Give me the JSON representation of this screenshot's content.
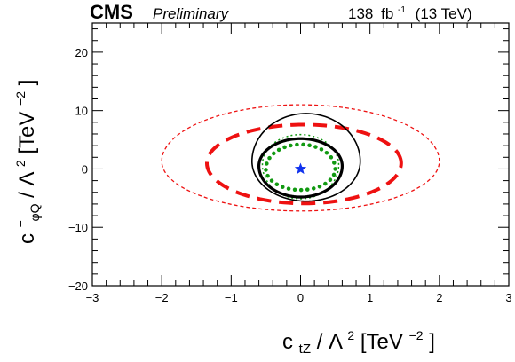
{
  "header": {
    "experiment": "CMS",
    "status": "Preliminary",
    "lumi_value": "138",
    "lumi_unit": "fb",
    "lumi_unit_exp": "-1",
    "energy": "(13 TeV)"
  },
  "axes": {
    "x_title": "c",
    "x_title_sub": "tZ",
    "x_title_tail": " / Λ",
    "x_title_tail_exp": "2",
    "x_unit": " [TeV",
    "x_unit_exp": "−2",
    "x_unit_close": "]",
    "y_title": "c",
    "y_title_sup": "−",
    "y_title_sub": "φQ",
    "y_title_tail": " / Λ",
    "y_title_tail_exp": "2",
    "y_unit": " [TeV",
    "y_unit_exp": "−2",
    "y_unit_close": "]"
  },
  "colors": {
    "red": "#ee1111",
    "green": "#119911",
    "black": "#000000",
    "blue": "#1133ee"
  },
  "chart_data": {
    "type": "scatter",
    "xlim": [
      -3,
      3
    ],
    "ylim": [
      -20,
      25
    ],
    "x_ticks": [
      -3,
      -2,
      -1,
      0,
      1,
      2,
      3
    ],
    "x_tick_labels": [
      "−3",
      "−2",
      "−1",
      "0",
      "1",
      "2",
      "3"
    ],
    "y_ticks": [
      -20,
      -10,
      0,
      10,
      20
    ],
    "y_tick_labels": [
      "−20",
      "−10",
      "0",
      "10",
      "20"
    ],
    "grid": false,
    "best_fit": {
      "x": 0.0,
      "y": 0.0,
      "marker": "star",
      "color": "#1133ee"
    },
    "contours": [
      {
        "style": "red-thin-dashed",
        "color": "#ee1111",
        "cx": 0.0,
        "cy": 1.3,
        "rx": 2.0,
        "ry_up": 9.7,
        "ry_down": 8.5
      },
      {
        "style": "red-thick-dashed",
        "color": "#ee1111",
        "cx": 0.05,
        "cy": 1.0,
        "rx": 1.4,
        "ry_up": 6.6,
        "ry_down": 6.9
      },
      {
        "style": "green-thin-dotted",
        "color": "#119911",
        "cx": 0.0,
        "cy": 0.7,
        "rx": 0.55,
        "ry_up": 5.2,
        "ry_down": 5.8
      },
      {
        "style": "green-thick-dotted",
        "color": "#119911",
        "cx": 0.0,
        "cy": 0.0,
        "rx": 0.5,
        "ry_up": 4.2,
        "ry_down": 3.6
      },
      {
        "style": "black-thin-solid",
        "color": "#000000",
        "cx": 0.08,
        "cy": 1.3,
        "rx": 0.78,
        "ry_up": 8.2,
        "ry_down": 6.8
      },
      {
        "style": "black-thick-solid",
        "color": "#000000",
        "cx": 0.0,
        "cy": 0.5,
        "rx": 0.6,
        "ry_up": 4.7,
        "ry_down": 5.3
      }
    ]
  }
}
